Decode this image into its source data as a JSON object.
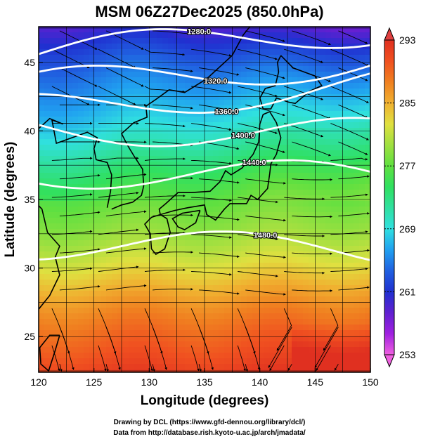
{
  "title": "MSM 06Z27Dec2025 (850.0hPa)",
  "xlabel": "Longitude (degrees)",
  "ylabel": "Latitude  (degrees)",
  "credits": [
    "Drawing by DCL (https://www.gfd-dennou.org/library/dcl/)",
    "Data from http://database.rish.kyoto-u.ac.jp/arch/jmadata/"
  ],
  "chart_data": {
    "type": "heatmap",
    "xlim": [
      120,
      150
    ],
    "ylim": [
      22.4,
      47.6
    ],
    "x_ticks": [
      120,
      125,
      130,
      135,
      140,
      145,
      150
    ],
    "y_ticks": [
      25,
      30,
      35,
      40,
      45
    ],
    "grid": true,
    "colorbar": {
      "min": 253,
      "max": 293,
      "ticks": [
        253,
        261,
        269,
        277,
        285,
        293
      ],
      "extend": "both",
      "colors": [
        "#f060e0",
        "#a020e0",
        "#6020d0",
        "#2030d0",
        "#2060e0",
        "#20a0f0",
        "#30e0e0",
        "#30e0a0",
        "#30e060",
        "#60e040",
        "#a0e040",
        "#e0e040",
        "#f0b030",
        "#f08020",
        "#f05020",
        "#e03020"
      ]
    },
    "contours": [
      {
        "label": "1280.0",
        "lat": 46.5
      },
      {
        "label": "1320.0",
        "lat": 44.2
      },
      {
        "label": "1360.0",
        "lat": 42.5
      },
      {
        "label": "1400.0",
        "lat": 40.0
      },
      {
        "label": "1440.0",
        "lat": 36.8
      },
      {
        "label": "1480.0",
        "lat": 31.5
      }
    ]
  }
}
